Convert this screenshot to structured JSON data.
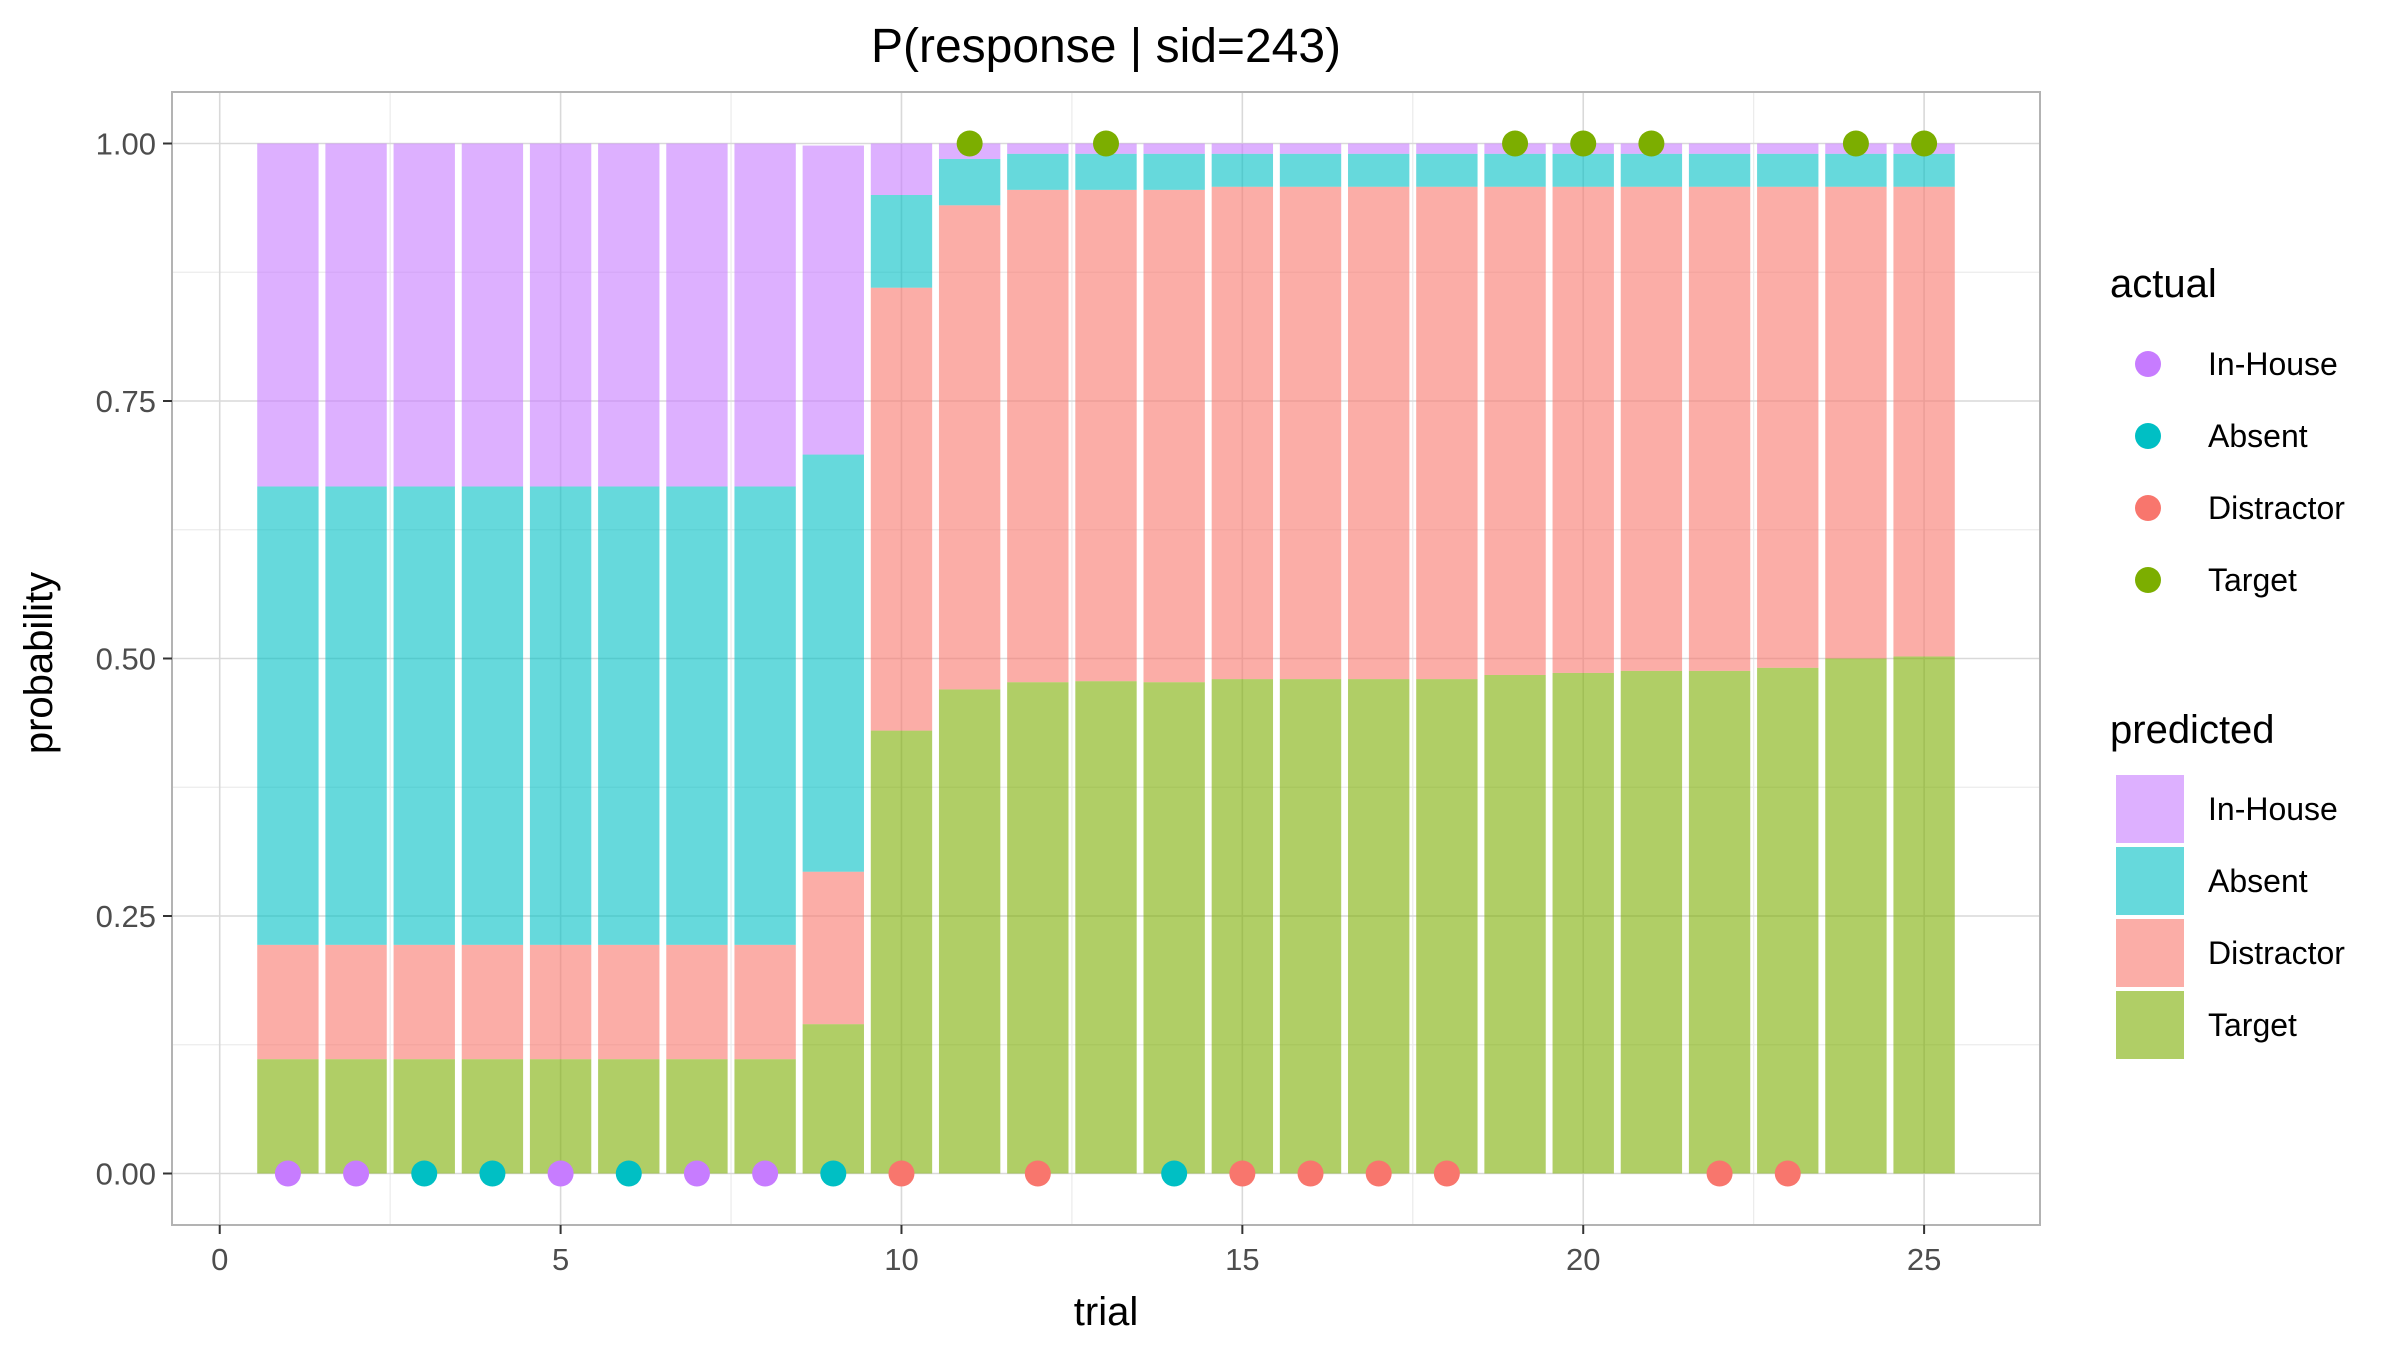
{
  "chart_data": {
    "type": "bar",
    "title": "P(response | sid=243)",
    "xlabel": "trial",
    "ylabel": "probability",
    "xlim": [
      -0.7,
      26.7
    ],
    "ylim": [
      -0.05,
      1.05
    ],
    "xticks": [
      0,
      5,
      10,
      15,
      20,
      25
    ],
    "xtick_labels": [
      "0",
      "5",
      "10",
      "15",
      "20",
      "25"
    ],
    "yticks": [
      0,
      0.25,
      0.5,
      0.75,
      1.0
    ],
    "ytick_labels": [
      "0.00",
      "0.25",
      "0.50",
      "0.75",
      "1.00"
    ],
    "grid": true,
    "legend_position": "right",
    "x": [
      1,
      2,
      3,
      4,
      5,
      6,
      7,
      8,
      9,
      10,
      11,
      12,
      13,
      14,
      15,
      16,
      17,
      18,
      19,
      20,
      21,
      22,
      23,
      24,
      25
    ],
    "stacked_series_order": [
      "Target",
      "Distractor",
      "Absent",
      "In-House"
    ],
    "predicted": {
      "legend_title": "predicted",
      "series": [
        {
          "name": "In-House",
          "color": "#C77CFF",
          "values": [
            0.333,
            0.333,
            0.333,
            0.333,
            0.333,
            0.333,
            0.333,
            0.333,
            0.3,
            0.05,
            0.015,
            0.01,
            0.01,
            0.01,
            0.01,
            0.01,
            0.01,
            0.01,
            0.01,
            0.01,
            0.01,
            0.01,
            0.01,
            0.01,
            0.01
          ]
        },
        {
          "name": "Absent",
          "color": "#00BFC4",
          "values": [
            0.445,
            0.445,
            0.445,
            0.445,
            0.445,
            0.445,
            0.445,
            0.445,
            0.405,
            0.09,
            0.045,
            0.035,
            0.035,
            0.035,
            0.032,
            0.032,
            0.032,
            0.032,
            0.032,
            0.032,
            0.032,
            0.032,
            0.032,
            0.032,
            0.032
          ]
        },
        {
          "name": "Distractor",
          "color": "#F8766D",
          "values": [
            0.111,
            0.111,
            0.111,
            0.111,
            0.111,
            0.111,
            0.111,
            0.111,
            0.148,
            0.43,
            0.47,
            0.478,
            0.477,
            0.478,
            0.478,
            0.478,
            0.478,
            0.478,
            0.474,
            0.472,
            0.47,
            0.47,
            0.467,
            0.458,
            0.456
          ]
        },
        {
          "name": "Target",
          "color": "#7CAE00",
          "values": [
            0.111,
            0.111,
            0.111,
            0.111,
            0.111,
            0.111,
            0.111,
            0.111,
            0.145,
            0.43,
            0.47,
            0.477,
            0.478,
            0.477,
            0.48,
            0.48,
            0.48,
            0.48,
            0.484,
            0.486,
            0.488,
            0.488,
            0.491,
            0.5,
            0.502
          ]
        }
      ]
    },
    "actual": {
      "legend_title": "actual",
      "categories": [
        {
          "name": "In-House",
          "color": "#C77CFF"
        },
        {
          "name": "Absent",
          "color": "#00BFC4"
        },
        {
          "name": "Distractor",
          "color": "#F8766D"
        },
        {
          "name": "Target",
          "color": "#7CAE00"
        }
      ],
      "points": [
        {
          "x": 1,
          "y": 0,
          "category": "In-House"
        },
        {
          "x": 2,
          "y": 0,
          "category": "In-House"
        },
        {
          "x": 3,
          "y": 0,
          "category": "Absent"
        },
        {
          "x": 4,
          "y": 0,
          "category": "Absent"
        },
        {
          "x": 5,
          "y": 0,
          "category": "In-House"
        },
        {
          "x": 6,
          "y": 0,
          "category": "Absent"
        },
        {
          "x": 7,
          "y": 0,
          "category": "In-House"
        },
        {
          "x": 8,
          "y": 0,
          "category": "In-House"
        },
        {
          "x": 9,
          "y": 0,
          "category": "Absent"
        },
        {
          "x": 10,
          "y": 0,
          "category": "Distractor"
        },
        {
          "x": 11,
          "y": 1,
          "category": "Target"
        },
        {
          "x": 12,
          "y": 0,
          "category": "Distractor"
        },
        {
          "x": 13,
          "y": 1,
          "category": "Target"
        },
        {
          "x": 14,
          "y": 0,
          "category": "Absent"
        },
        {
          "x": 15,
          "y": 0,
          "category": "Distractor"
        },
        {
          "x": 16,
          "y": 0,
          "category": "Distractor"
        },
        {
          "x": 17,
          "y": 0,
          "category": "Distractor"
        },
        {
          "x": 18,
          "y": 0,
          "category": "Distractor"
        },
        {
          "x": 19,
          "y": 1,
          "category": "Target"
        },
        {
          "x": 20,
          "y": 1,
          "category": "Target"
        },
        {
          "x": 21,
          "y": 1,
          "category": "Target"
        },
        {
          "x": 22,
          "y": 0,
          "category": "Distractor"
        },
        {
          "x": 23,
          "y": 0,
          "category": "Distractor"
        },
        {
          "x": 24,
          "y": 1,
          "category": "Target"
        },
        {
          "x": 25,
          "y": 1,
          "category": "Target"
        }
      ]
    }
  }
}
